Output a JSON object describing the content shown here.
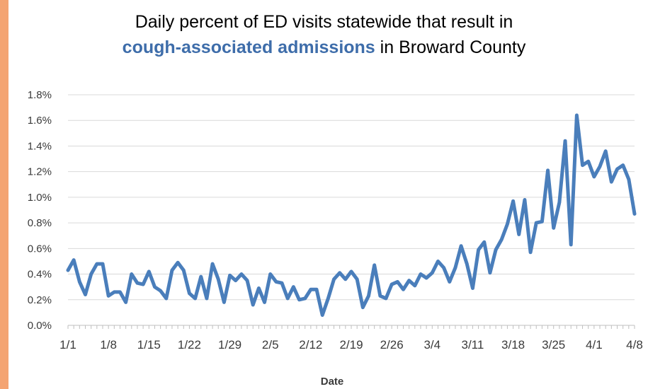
{
  "title": {
    "line1": "Daily percent of ED visits statewide that result in",
    "line2_bold": "cough-associated admissions",
    "line2_rest": " in Broward County"
  },
  "colors": {
    "series": "#4A7EBB",
    "title_accent": "#3E6DAA",
    "left_bar": "#F4A472",
    "grid": "#D9D9D9"
  },
  "chart_data": {
    "type": "line",
    "title": "Daily percent of ED visits statewide that result in cough-associated admissions in Broward County",
    "xlabel": "Date",
    "ylabel": "",
    "ylim": [
      0,
      0.018
    ],
    "y_format": "percent",
    "grid": true,
    "legend": "none",
    "y_ticks": [
      {
        "value": 0.0,
        "label": "0.0%"
      },
      {
        "value": 0.002,
        "label": "0.2%"
      },
      {
        "value": 0.004,
        "label": "0.4%"
      },
      {
        "value": 0.006,
        "label": "0.6%"
      },
      {
        "value": 0.008,
        "label": "0.8%"
      },
      {
        "value": 0.01,
        "label": "1.0%"
      },
      {
        "value": 0.012,
        "label": "1.2%"
      },
      {
        "value": 0.014,
        "label": "1.4%"
      },
      {
        "value": 0.016,
        "label": "1.6%"
      },
      {
        "value": 0.018,
        "label": "1.8%"
      }
    ],
    "x_ticks": [
      "1/1",
      "1/8",
      "1/15",
      "1/22",
      "1/29",
      "2/5",
      "2/12",
      "2/19",
      "2/26",
      "3/4",
      "3/11",
      "3/18",
      "3/25",
      "4/1",
      "4/8"
    ],
    "series": [
      {
        "values": [
          0.0043,
          0.0051,
          0.0034,
          0.0024,
          0.004,
          0.0048,
          0.0048,
          0.0023,
          0.0026,
          0.0026,
          0.0018,
          0.004,
          0.0033,
          0.0032,
          0.0042,
          0.003,
          0.0027,
          0.0021,
          0.0043,
          0.0049,
          0.0043,
          0.0025,
          0.0021,
          0.0038,
          0.0021,
          0.0048,
          0.0036,
          0.0018,
          0.0039,
          0.0035,
          0.004,
          0.0035,
          0.0016,
          0.0029,
          0.0018,
          0.004,
          0.0034,
          0.0033,
          0.0021,
          0.003,
          0.002,
          0.0021,
          0.0028,
          0.0028,
          0.0008,
          0.0021,
          0.0036,
          0.0041,
          0.0036,
          0.0042,
          0.0036,
          0.0014,
          0.0023,
          0.0047,
          0.0023,
          0.0021,
          0.0032,
          0.0034,
          0.0028,
          0.0035,
          0.0031,
          0.004,
          0.0037,
          0.0041,
          0.005,
          0.0045,
          0.0034,
          0.0045,
          0.0062,
          0.0048,
          0.0029,
          0.0059,
          0.0065,
          0.0041,
          0.0059,
          0.0067,
          0.0079,
          0.0097,
          0.0071,
          0.0098,
          0.0057,
          0.008,
          0.0081,
          0.0121,
          0.0076,
          0.0096,
          0.0144,
          0.0063,
          0.0164,
          0.0125,
          0.0128,
          0.0116,
          0.0124,
          0.0136,
          0.0112,
          0.0122,
          0.0125,
          0.0114,
          0.0087
        ]
      }
    ]
  }
}
